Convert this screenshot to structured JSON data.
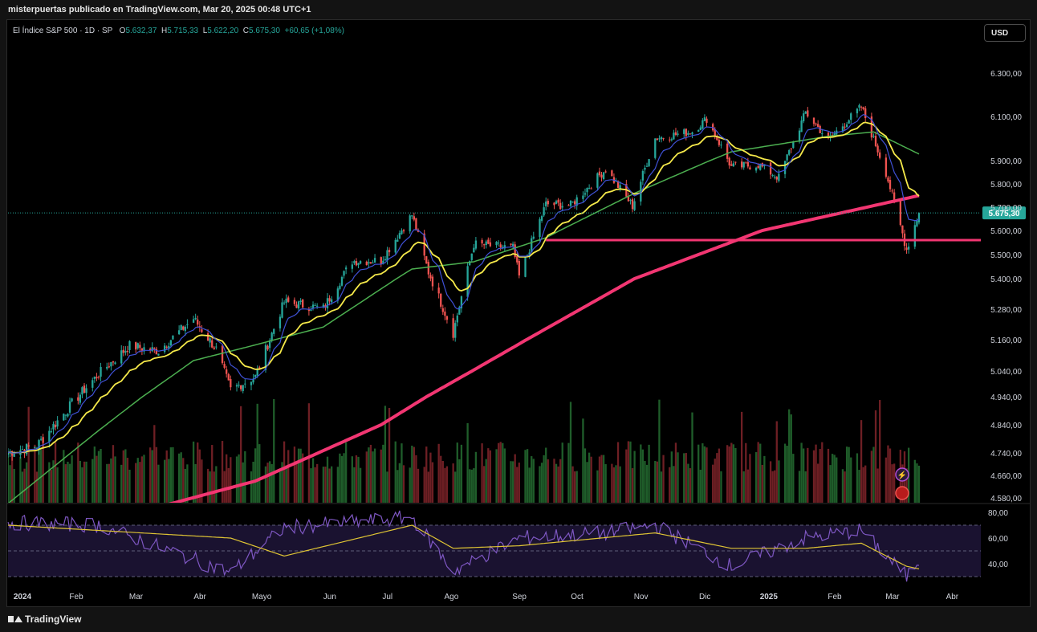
{
  "header": {
    "attribution": "misterpuertas publicado en TradingView.com, Mar 20, 2025 00:48 UTC+1"
  },
  "legend": {
    "symbol": "El Índice S&P 500 · 1D · SP",
    "open_label": "O",
    "open": "5.632,37",
    "high_label": "H",
    "high": "5.715,33",
    "low_label": "L",
    "low": "5.622,20",
    "close_label": "C",
    "close": "5.675,30",
    "change": "+60,65 (+1,08%)"
  },
  "currency_button": "USD",
  "footer": {
    "brand": "TradingView"
  },
  "colors": {
    "up": "#26a69a",
    "down": "#ef5350",
    "ema_fast": "#3f51d6",
    "ema_mid": "#f5e94a",
    "ma50": "#4caf50",
    "ma200": "#f23672",
    "support": "#f23672",
    "rsi": "#7e57c2",
    "rsi_ma": "#e0c534",
    "price_tag": "#26a69a"
  },
  "chart_data": [
    {
      "type": "line",
      "title": "",
      "price_axis_ticks": [
        "6.300,00",
        "6.100,00",
        "5.900,00",
        "5.800,00",
        "5.700,00",
        "5.600,00",
        "5.500,00",
        "5.400,00",
        "5.280,00",
        "5.160,00",
        "5.040,00",
        "4.940,00",
        "4.840,00",
        "4.740,00",
        "4.660,00",
        "4.580,00"
      ],
      "price_tick_values": [
        6300,
        6100,
        5900,
        5800,
        5700,
        5600,
        5500,
        5400,
        5280,
        5160,
        5040,
        4940,
        4840,
        4740,
        4660,
        4580
      ],
      "time_axis_labels": [
        "2024",
        "Feb",
        "Mar",
        "Abr",
        "Mayo",
        "Jun",
        "Jul",
        "Ago",
        "Sep",
        "Oct",
        "Nov",
        "Dic",
        "2025",
        "Feb",
        "Mar",
        "Abr"
      ],
      "last_price_label": "5.675,30",
      "last_price": 5675.3,
      "support_level": 5560,
      "series": [
        {
          "key": "close",
          "x": [
            "2024-01-02",
            "2024-01-16",
            "2024-02-01",
            "2024-02-15",
            "2024-03-01",
            "2024-03-15",
            "2024-04-01",
            "2024-04-12",
            "2024-04-19",
            "2024-05-01",
            "2024-05-15",
            "2024-06-03",
            "2024-06-17",
            "2024-07-01",
            "2024-07-16",
            "2024-07-24",
            "2024-08-05",
            "2024-08-15",
            "2024-09-03",
            "2024-09-06",
            "2024-09-19",
            "2024-10-01",
            "2024-10-18",
            "2024-10-31",
            "2024-11-11",
            "2024-11-29",
            "2024-12-06",
            "2024-12-18",
            "2024-12-31",
            "2025-01-10",
            "2025-01-23",
            "2025-02-03",
            "2025-02-19",
            "2025-03-03",
            "2025-03-13",
            "2025-03-19"
          ],
          "values": [
            4742,
            4766,
            4906,
            5029,
            5137,
            5117,
            5243,
            5123,
            4967,
            5018,
            5308,
            5283,
            5473,
            5475,
            5667,
            5427,
            5186,
            5543,
            5528,
            5408,
            5713,
            5708,
            5864,
            5705,
            6001,
            6032,
            6090,
            5872,
            5882,
            5827,
            6118,
            5994,
            6144,
            5849,
            5521,
            5675
          ]
        },
        {
          "key": "ma200",
          "x": [
            "2024-01-02",
            "2024-03-01",
            "2024-05-01",
            "2024-07-01",
            "2024-09-03",
            "2024-11-01",
            "2025-01-02",
            "2025-03-19"
          ],
          "values": [
            4420,
            4520,
            4640,
            4840,
            5130,
            5400,
            5600,
            5750
          ]
        },
        {
          "key": "ma50",
          "x": [
            "2024-01-02",
            "2024-02-15",
            "2024-04-01",
            "2024-05-01",
            "2024-06-03",
            "2024-07-16",
            "2024-08-15",
            "2024-09-19",
            "2024-11-01",
            "2024-12-18",
            "2025-02-03",
            "2025-02-25",
            "2025-03-19"
          ],
          "values": [
            4560,
            4820,
            5080,
            5140,
            5210,
            5440,
            5470,
            5570,
            5760,
            5940,
            6010,
            6030,
            5930
          ]
        }
      ]
    },
    {
      "type": "line",
      "title": "",
      "axis_ticks": [
        "80,00",
        "60,00",
        "40,00"
      ],
      "tick_values": [
        80,
        60,
        40
      ],
      "band": [
        30,
        70
      ],
      "series": [
        {
          "key": "rsi",
          "x": [
            "2024-01-02",
            "2024-02-15",
            "2024-04-19",
            "2024-05-15",
            "2024-07-16",
            "2024-08-05",
            "2024-09-06",
            "2024-10-18",
            "2024-11-11",
            "2024-12-18",
            "2025-01-23",
            "2025-02-19",
            "2025-03-13",
            "2025-03-19"
          ],
          "values": [
            72,
            70,
            33,
            68,
            76,
            34,
            60,
            64,
            70,
            38,
            60,
            66,
            30,
            43
          ]
        },
        {
          "key": "rsi_ma",
          "x": [
            "2024-01-02",
            "2024-04-19",
            "2024-05-15",
            "2024-07-16",
            "2024-08-05",
            "2024-09-06",
            "2024-11-11",
            "2024-12-18",
            "2025-01-23",
            "2025-02-19",
            "2025-03-13",
            "2025-03-19"
          ],
          "values": [
            70,
            60,
            46,
            70,
            52,
            54,
            64,
            52,
            52,
            56,
            38,
            36
          ]
        }
      ]
    }
  ]
}
